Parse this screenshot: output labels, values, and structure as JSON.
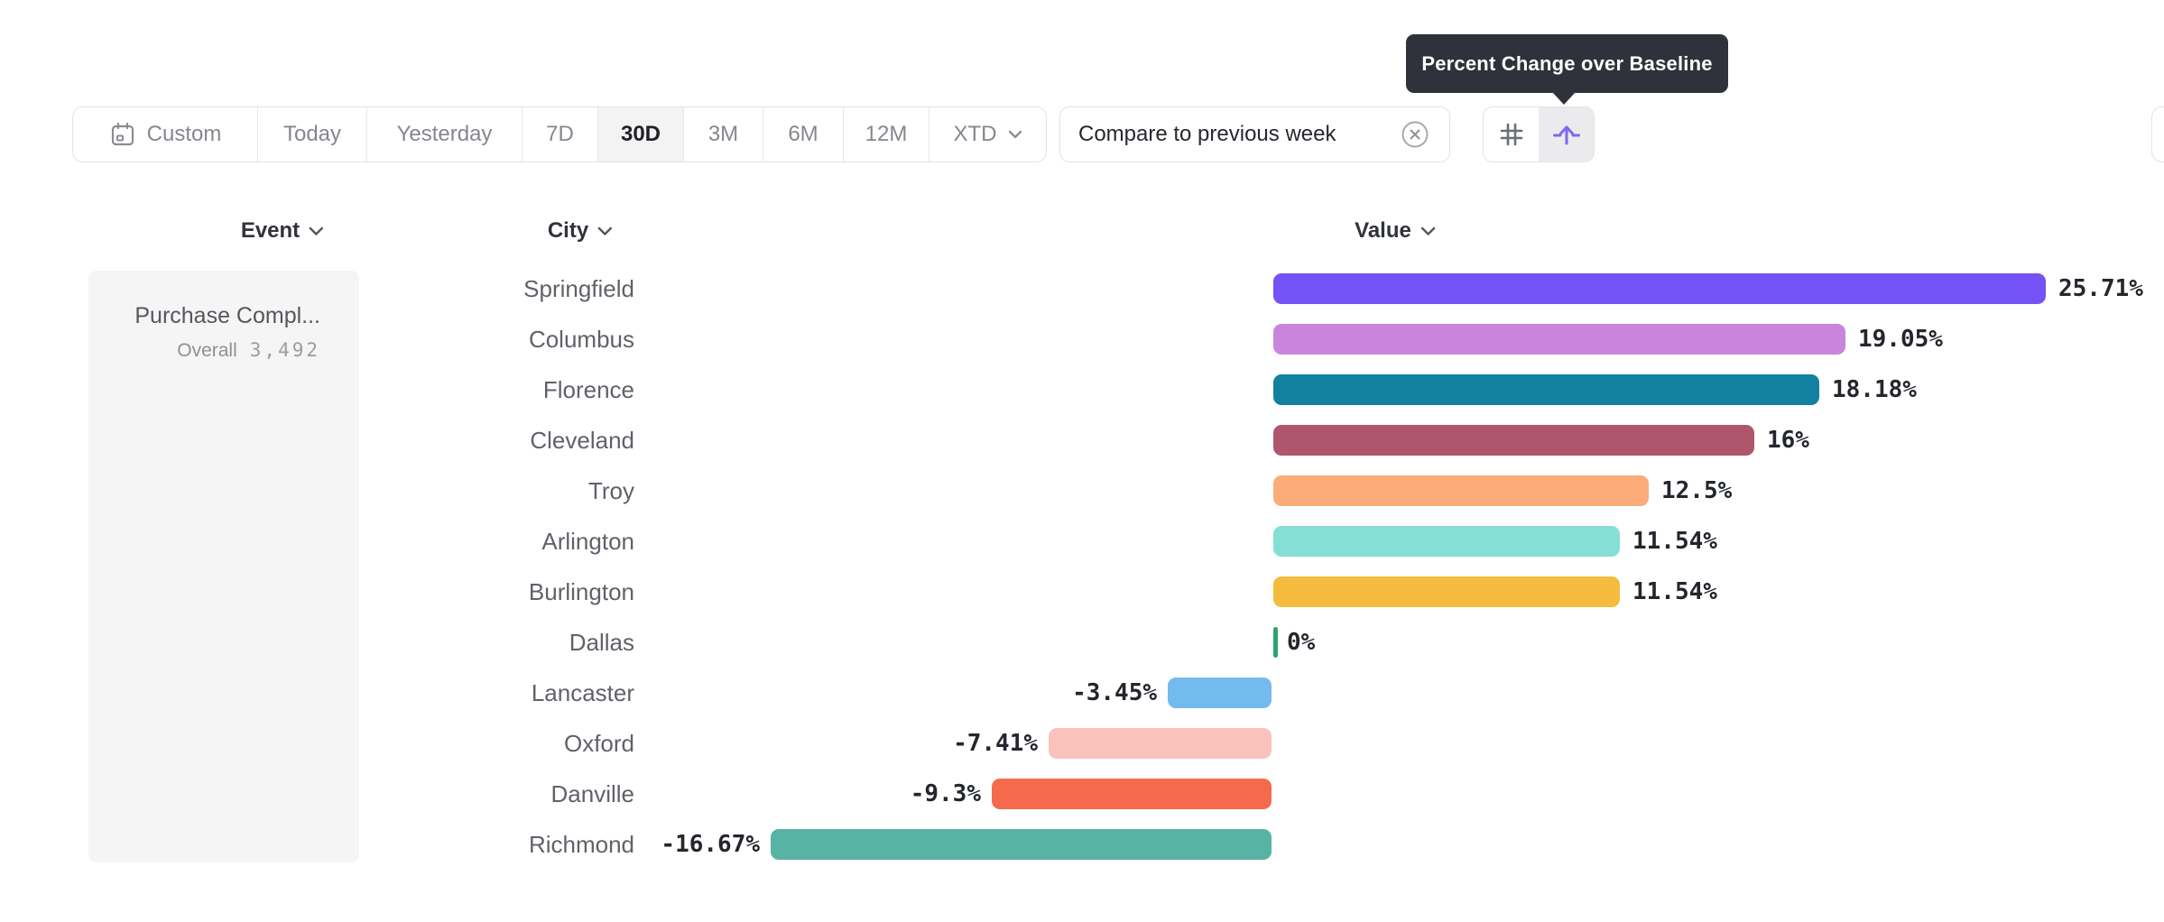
{
  "tooltip": {
    "text": "Percent Change over Baseline"
  },
  "toolbar": {
    "date_ranges": [
      {
        "label": "Custom",
        "icon": "calendar-icon",
        "selected": false
      },
      {
        "label": "Today",
        "selected": false
      },
      {
        "label": "Yesterday",
        "selected": false
      },
      {
        "label": "7D",
        "selected": false
      },
      {
        "label": "30D",
        "selected": true
      },
      {
        "label": "3M",
        "selected": false
      },
      {
        "label": "6M",
        "selected": false
      },
      {
        "label": "12M",
        "selected": false
      },
      {
        "label": "XTD",
        "chevron": true,
        "selected": false
      }
    ],
    "compare_chip": {
      "label": "Compare to previous week",
      "close_icon": "x-circle-icon"
    },
    "view_toggle": {
      "options": [
        {
          "icon": "grid-hash-icon",
          "selected": false
        },
        {
          "icon": "baseline-lift-icon",
          "selected": true
        }
      ],
      "accent_color": "#7b68f3"
    }
  },
  "columns": [
    {
      "label": "Event"
    },
    {
      "label": "City"
    },
    {
      "label": "Value"
    }
  ],
  "event_panel": {
    "event_name": "Purchase Compl...",
    "overall_label": "Overall",
    "overall_value": "3,492"
  },
  "chart_data": {
    "type": "bar",
    "orientation": "horizontal",
    "title": "Percent Change over Baseline",
    "value_unit": "%",
    "baseline": 0,
    "xlim": [
      -16.67,
      25.71
    ],
    "categories": [
      "Springfield",
      "Columbus",
      "Florence",
      "Cleveland",
      "Troy",
      "Arlington",
      "Burlington",
      "Dallas",
      "Lancaster",
      "Oxford",
      "Danville",
      "Richmond"
    ],
    "values": [
      25.71,
      19.05,
      18.18,
      16,
      12.5,
      11.54,
      11.54,
      0,
      -3.45,
      -7.41,
      -9.3,
      -16.67
    ],
    "labels": [
      "25.71%",
      "19.05%",
      "18.18%",
      "16%",
      "12.5%",
      "11.54%",
      "11.54%",
      "0%",
      "-3.45%",
      "-7.41%",
      "-9.3%",
      "-16.67%"
    ],
    "colors": [
      "#7452f5",
      "#c985dd",
      "#11819f",
      "#af566c",
      "#fcac78",
      "#85dfd4",
      "#f5bb3f",
      "#2ea36c",
      "#73bbee",
      "#f9c3bb",
      "#f56a4c",
      "#57b3a4"
    ]
  }
}
